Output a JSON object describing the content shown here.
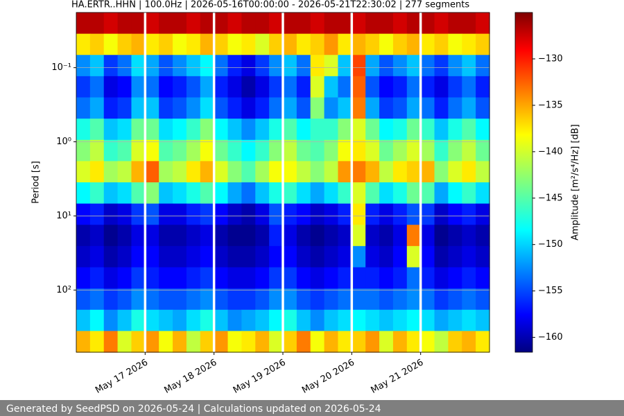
{
  "chart_data": {
    "type": "spectrogram",
    "title": "HA.ERTR..HHN | 100.0Hz | 2026-05-16T00:00:00 - 2026-05-21T22:30:02 | 277 segments",
    "y_label": "Period [s]",
    "colorbar_label": "Amplitude [m²/s⁴/Hz] [dB]",
    "xlim": [
      "2026-05-16",
      "2026-05-22"
    ],
    "xticks": [
      {
        "value": "2026-05-17",
        "label": "May 17 2026"
      },
      {
        "value": "2026-05-18",
        "label": "May 18 2026"
      },
      {
        "value": "2026-05-19",
        "label": "May 19 2026"
      },
      {
        "value": "2026-05-20",
        "label": "May 20 2026"
      },
      {
        "value": "2026-05-21",
        "label": "May 21 2026"
      }
    ],
    "ylim": [
      0.018,
      690
    ],
    "log_y": true,
    "y_inverted": true,
    "yticks": [
      {
        "value": 0.1,
        "label": "10⁻¹"
      },
      {
        "value": 1,
        "label": "10⁰"
      },
      {
        "value": 10,
        "label": "10¹"
      },
      {
        "value": 100,
        "label": "10²"
      }
    ],
    "grid": true,
    "gap_at_xticks": true,
    "colormap": "jet",
    "clim": [
      -161.6,
      -125
    ],
    "cticks": [
      {
        "value": -130,
        "label": "−130"
      },
      {
        "value": -135,
        "label": "−135"
      },
      {
        "value": -140,
        "label": "−140"
      },
      {
        "value": -145,
        "label": "−145"
      },
      {
        "value": -150,
        "label": "−150"
      },
      {
        "value": -155,
        "label": "−155"
      },
      {
        "value": -160,
        "label": "−160"
      }
    ],
    "z": [
      [
        -127,
        -127,
        -128,
        -127,
        -127,
        -128,
        -127,
        -127,
        -128,
        -127,
        -127,
        -128,
        -127,
        -127,
        -128,
        -127,
        -127,
        -128,
        -127,
        -127,
        -128,
        -127,
        -127,
        -128,
        -127,
        -127,
        -128,
        -127,
        -127,
        -128
      ],
      [
        -138,
        -137,
        -139,
        -137,
        -136,
        -138,
        -137,
        -139,
        -138,
        -136,
        -137,
        -139,
        -138,
        -140,
        -137,
        -136,
        -138,
        -137,
        -135,
        -138,
        -136,
        -137,
        -139,
        -137,
        -136,
        -138,
        -137,
        -139,
        -138,
        -137
      ],
      [
        -152,
        -150,
        -155,
        -153,
        -149,
        -151,
        -154,
        -152,
        -150,
        -148,
        -153,
        -156,
        -158,
        -155,
        -152,
        -150,
        -153,
        -138,
        -140,
        -150,
        -132,
        -151,
        -154,
        -152,
        -150,
        -153,
        -155,
        -152,
        -150,
        -153
      ],
      [
        -155,
        -153,
        -158,
        -157,
        -152,
        -153,
        -157,
        -156,
        -154,
        -151,
        -156,
        -158,
        -160,
        -158,
        -155,
        -153,
        -156,
        -140,
        -150,
        -153,
        -133,
        -154,
        -157,
        -156,
        -153,
        -156,
        -158,
        -155,
        -153,
        -156
      ],
      [
        -153,
        -151,
        -156,
        -155,
        -150,
        -150,
        -155,
        -154,
        -152,
        -149,
        -154,
        -156,
        -158,
        -156,
        -153,
        -151,
        -154,
        -143,
        -152,
        -150,
        -134,
        -151,
        -155,
        -154,
        -151,
        -153,
        -156,
        -153,
        -151,
        -154
      ],
      [
        -147,
        -145,
        -150,
        -149,
        -144,
        -144,
        -149,
        -148,
        -146,
        -143,
        -148,
        -150,
        -152,
        -150,
        -147,
        -145,
        -148,
        -146,
        -146,
        -143,
        -140,
        -144,
        -148,
        -147,
        -144,
        -146,
        -150,
        -147,
        -145,
        -148
      ],
      [
        -143,
        -141,
        -146,
        -145,
        -140,
        -139,
        -145,
        -144,
        -142,
        -139,
        -144,
        -146,
        -148,
        -146,
        -143,
        -141,
        -144,
        -145,
        -143,
        -139,
        -138,
        -140,
        -144,
        -142,
        -140,
        -142,
        -146,
        -143,
        -141,
        -144
      ],
      [
        -140,
        -138,
        -142,
        -141,
        -136,
        -133,
        -142,
        -141,
        -138,
        -136,
        -140,
        -143,
        -145,
        -142,
        -139,
        -139,
        -141,
        -143,
        -141,
        -135,
        -134,
        -136,
        -141,
        -138,
        -137,
        -136,
        -143,
        -140,
        -138,
        -141
      ],
      [
        -148,
        -146,
        -150,
        -149,
        -145,
        -143,
        -150,
        -149,
        -147,
        -145,
        -148,
        -151,
        -153,
        -150,
        -147,
        -146,
        -149,
        -151,
        -149,
        -146,
        -140,
        -145,
        -149,
        -147,
        -144,
        -145,
        -151,
        -148,
        -146,
        -149
      ],
      [
        -157,
        -156,
        -159,
        -158,
        -155,
        -154,
        -158,
        -158,
        -156,
        -155,
        -157,
        -159,
        -160,
        -158,
        -154,
        -156,
        -157,
        -159,
        -158,
        -156,
        -138,
        -156,
        -158,
        -156,
        -154,
        -155,
        -159,
        -157,
        -156,
        -158
      ],
      [
        -160,
        -159,
        -161,
        -160,
        -158,
        -158,
        -160,
        -160,
        -159,
        -158,
        -160,
        -161,
        -161,
        -160,
        -156,
        -158,
        -160,
        -161,
        -160,
        -159,
        -140,
        -159,
        -160,
        -158,
        -134,
        -158,
        -161,
        -160,
        -159,
        -160
      ],
      [
        -159,
        -158,
        -160,
        -159,
        -157,
        -157,
        -159,
        -159,
        -158,
        -157,
        -159,
        -160,
        -160,
        -159,
        -157,
        -157,
        -159,
        -160,
        -159,
        -158,
        -152,
        -158,
        -159,
        -157,
        -140,
        -157,
        -160,
        -159,
        -158,
        -159
      ],
      [
        -157,
        -156,
        -158,
        -157,
        -155,
        -156,
        -157,
        -157,
        -156,
        -155,
        -157,
        -158,
        -158,
        -157,
        -155,
        -155,
        -157,
        -158,
        -157,
        -156,
        -156,
        -156,
        -157,
        -156,
        -153,
        -156,
        -158,
        -157,
        -156,
        -157
      ],
      [
        -154,
        -153,
        -155,
        -154,
        -152,
        -153,
        -154,
        -154,
        -153,
        -152,
        -154,
        -155,
        -155,
        -154,
        -152,
        -152,
        -154,
        -155,
        -154,
        -153,
        -153,
        -153,
        -154,
        -153,
        -152,
        -153,
        -155,
        -154,
        -153,
        -154
      ],
      [
        -150,
        -148,
        -152,
        -150,
        -147,
        -149,
        -150,
        -151,
        -149,
        -147,
        -150,
        -152,
        -151,
        -150,
        -148,
        -147,
        -150,
        -152,
        -150,
        -149,
        -148,
        -149,
        -150,
        -149,
        -148,
        -149,
        -151,
        -150,
        -149,
        -150
      ],
      [
        -136,
        -138,
        -134,
        -140,
        -137,
        -135,
        -139,
        -136,
        -141,
        -137,
        -135,
        -139,
        -138,
        -136,
        -140,
        -137,
        -134,
        -139,
        -136,
        -138,
        -137,
        -135,
        -140,
        -136,
        -138,
        -139,
        -141,
        -137,
        -136,
        -138
      ]
    ]
  },
  "footer": "Generated by SeedPSD on 2026-05-24 | Calculations updated on 2026-05-24"
}
